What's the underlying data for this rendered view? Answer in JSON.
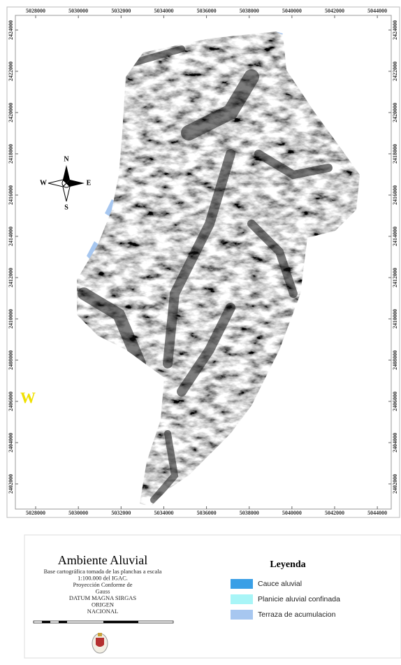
{
  "map": {
    "xlim": [
      5027050,
      5044650
    ],
    "ylim": [
      2400780,
      2424710
    ],
    "x_ticks": [
      5028000,
      5030000,
      5032000,
      5034000,
      5036000,
      5038000,
      5040000,
      5042000,
      5044000
    ],
    "y_ticks": [
      2402000,
      2404000,
      2406000,
      2408000,
      2410000,
      2412000,
      2414000,
      2416000,
      2418000,
      2420000,
      2422000,
      2424000
    ],
    "compass": {
      "n": "N",
      "s": "S",
      "e": "E",
      "w": "W"
    },
    "marker": "W"
  },
  "info": {
    "title": "Ambiente Aluvial",
    "lines": [
      "Base cartográfica tomada de las planchas a escala",
      "1:100.000 del IGAC.",
      "Proyección Conforme de",
      "Gauss",
      "DATUM MAGNA SIRGAS",
      "ORIGEN",
      "NACIONAL"
    ]
  },
  "legend": {
    "title": "Leyenda",
    "items": [
      {
        "label": "Cauce aluvial",
        "color": "#3a9fe6"
      },
      {
        "label": "Planicie aluvial confinada",
        "color": "#a8f5f7"
      },
      {
        "label": "Terraza de acumulacion",
        "color": "#a7c7f0"
      }
    ]
  }
}
